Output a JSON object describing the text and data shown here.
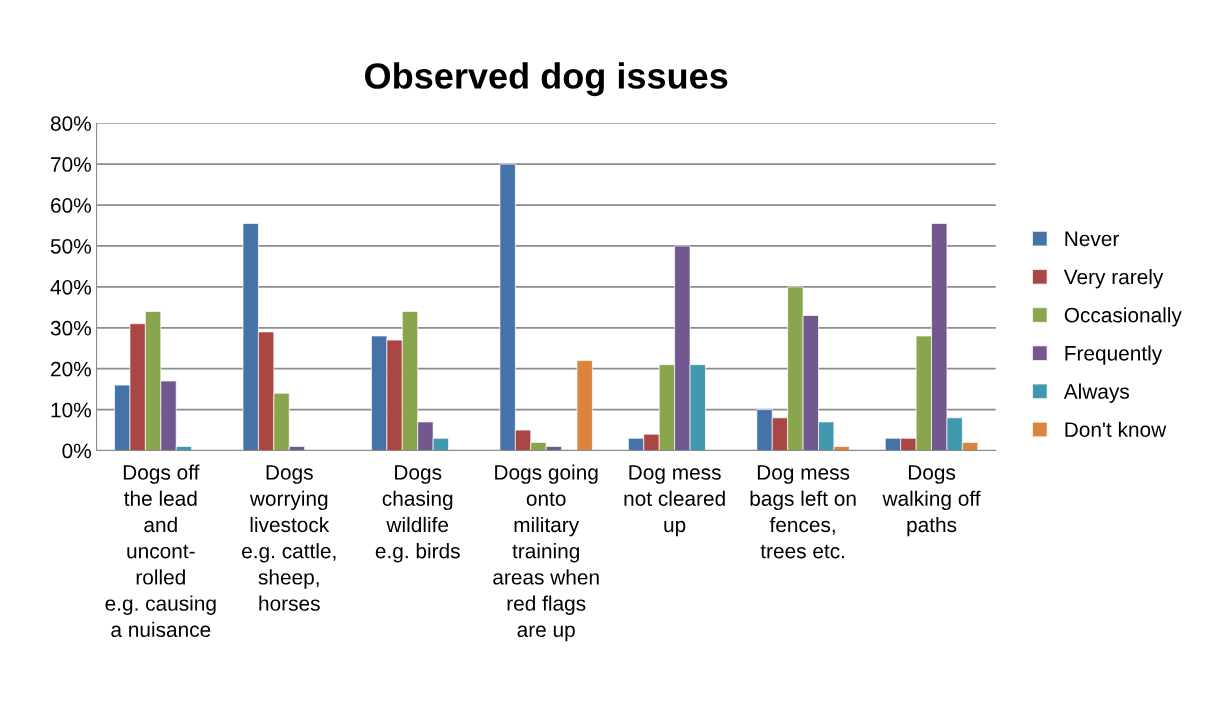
{
  "chart_data": {
    "type": "bar",
    "title": "Observed dog issues",
    "categories": [
      "Dogs off\nthe lead\nand\nuncont-\nrolled\ne.g. causing\na nuisance",
      "Dogs\nworrying\nlivestock\ne.g. cattle,\nsheep,\nhorses",
      "Dogs\nchasing\nwildlife\ne.g. birds",
      "Dogs going\nonto\nmilitary\ntraining\nareas when\nred flags\nare up",
      "Dog mess\nnot cleared\nup",
      "Dog mess\nbags left on\nfences,\ntrees etc.",
      "Dogs\nwalking off\npaths"
    ],
    "series": [
      {
        "name": "Never",
        "color": "#4572a7",
        "values": [
          16,
          55.5,
          28,
          70,
          3,
          10,
          3
        ]
      },
      {
        "name": "Very rarely",
        "color": "#aa4643",
        "values": [
          31,
          29,
          27,
          5,
          4,
          8,
          3
        ]
      },
      {
        "name": "Occasionally",
        "color": "#89a54e",
        "values": [
          34,
          14,
          34,
          2,
          21,
          40,
          28
        ]
      },
      {
        "name": "Frequently",
        "color": "#71588f",
        "values": [
          17,
          1,
          7,
          1,
          50,
          33,
          55.5
        ]
      },
      {
        "name": "Always",
        "color": "#4198af",
        "values": [
          1,
          null,
          3,
          null,
          21,
          7,
          8
        ]
      },
      {
        "name": "Don't know",
        "color": "#db843d",
        "values": [
          null,
          null,
          null,
          22,
          null,
          1,
          2
        ]
      }
    ],
    "ylim": [
      0,
      80
    ],
    "yticks": [
      {
        "value": 0,
        "label": "0%"
      },
      {
        "value": 10,
        "label": "10%"
      },
      {
        "value": 20,
        "label": "20%"
      },
      {
        "value": 30,
        "label": "30%"
      },
      {
        "value": 40,
        "label": "40%"
      },
      {
        "value": 50,
        "label": "50%"
      },
      {
        "value": 60,
        "label": "60%"
      },
      {
        "value": 70,
        "label": "70%"
      },
      {
        "value": 80,
        "label": "80%"
      }
    ],
    "grid": "y",
    "legend": "right"
  }
}
